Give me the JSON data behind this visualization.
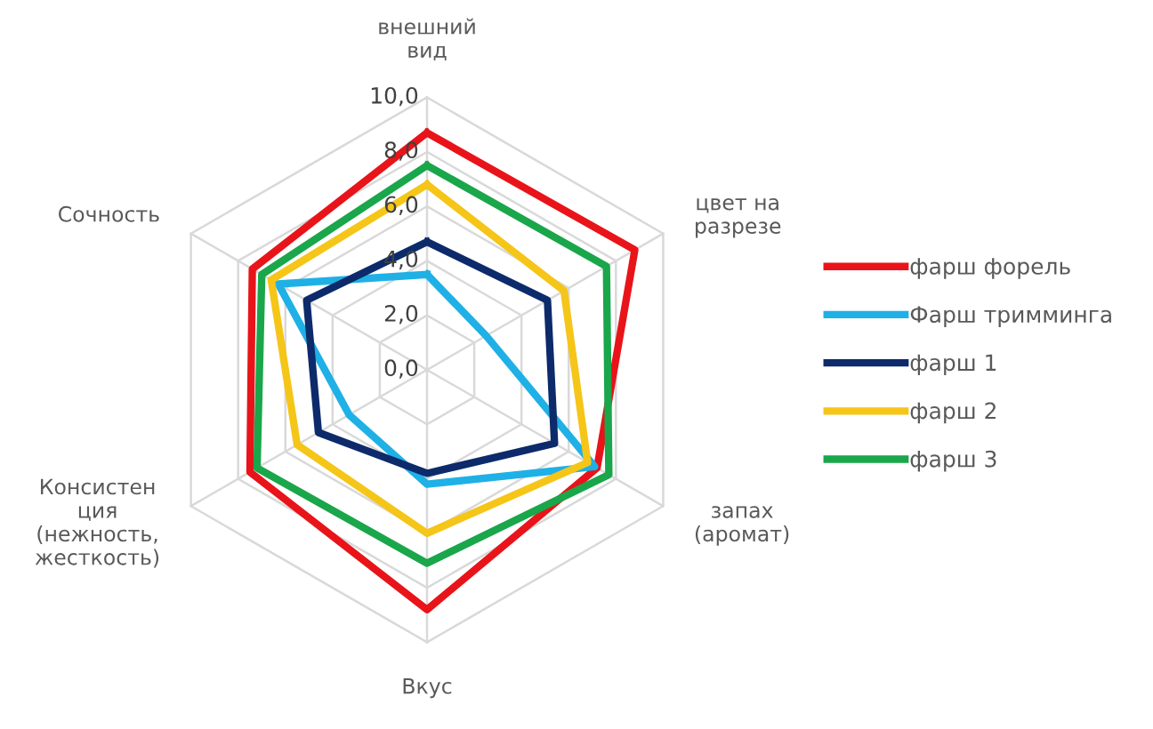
{
  "chart_data": {
    "type": "radar",
    "categories": [
      "внешний\nвид",
      "цвет на\nразрезе",
      "запах\n(аромат)",
      "Вкус",
      "Консистен\nция\n(нежность,\nжесткость)",
      "Сочность"
    ],
    "series": [
      {
        "name": "фарш форель",
        "color": "#e8141a",
        "values": [
          8.7,
          8.8,
          7.2,
          8.8,
          7.5,
          7.4
        ]
      },
      {
        "name": "Фарш тримминга",
        "color": "#1fb0e6",
        "values": [
          3.5,
          2.5,
          7.1,
          4.2,
          3.3,
          6.3
        ]
      },
      {
        "name": "фарш 1",
        "color": "#0d2a6b",
        "values": [
          4.7,
          5.1,
          5.4,
          3.8,
          4.6,
          5.1
        ]
      },
      {
        "name": "фарш 2",
        "color": "#f5c518",
        "values": [
          6.8,
          5.8,
          6.8,
          6.0,
          5.5,
          6.6
        ]
      },
      {
        "name": "фарш 3",
        "color": "#1aa64a",
        "values": [
          7.5,
          7.6,
          7.7,
          7.1,
          7.2,
          7.0
        ]
      }
    ],
    "ylim": [
      0,
      10
    ],
    "yticks": [
      {
        "value": 0,
        "label": "0,0"
      },
      {
        "value": 2,
        "label": "2,0"
      },
      {
        "value": 4,
        "label": "4,0"
      },
      {
        "value": 6,
        "label": "6,0"
      },
      {
        "value": 8,
        "label": "8,0"
      },
      {
        "value": 10,
        "label": "10,0"
      }
    ],
    "grid": true,
    "legend": "right",
    "line_style": "solid",
    "marker": "none"
  }
}
